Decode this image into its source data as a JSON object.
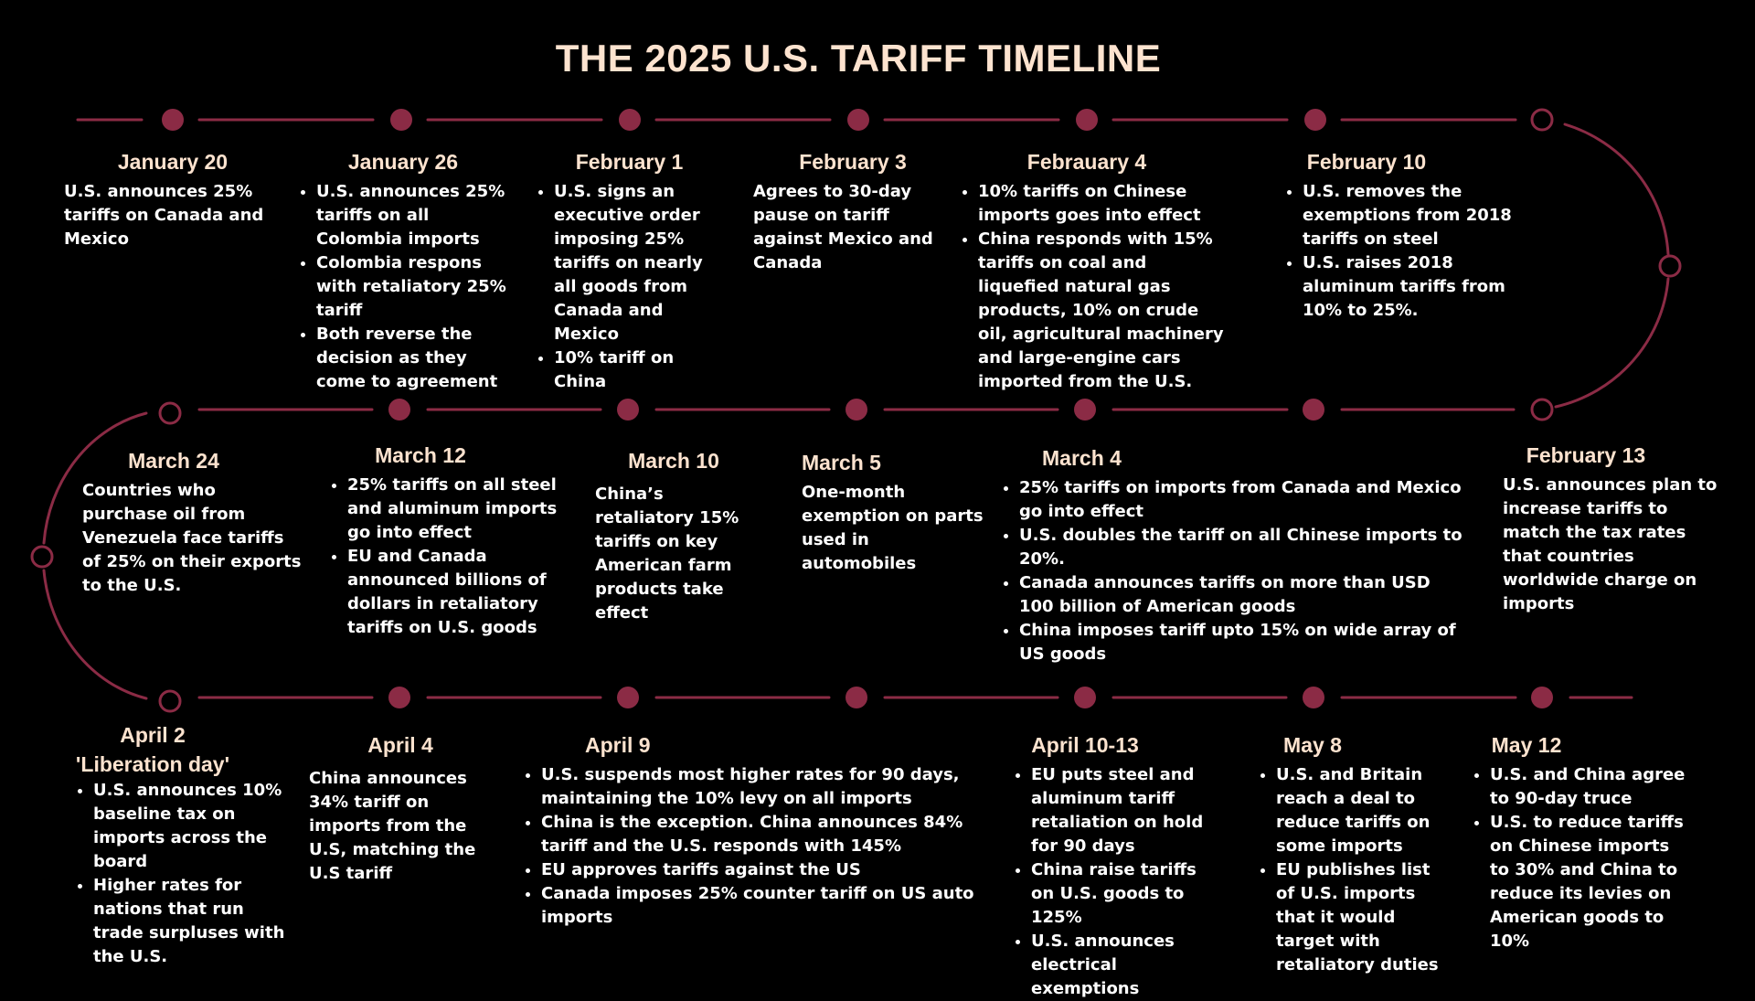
{
  "title": "THE 2025 U.S. TARIFF TIMELINE",
  "colors": {
    "background": "#000000",
    "line": "#8b2b45",
    "dot": "#8b2b45",
    "date": "#fde3cf",
    "text": "#ffffff"
  },
  "events": {
    "jan20": {
      "date": "January 20",
      "text": "U.S. announces 25% tariffs on Canada and Mexico"
    },
    "jan26": {
      "date": "January 26",
      "items": [
        "U.S. announces  25% tariffs on all Colombia imports",
        "Colombia respons with retaliatory 25%  tariff",
        "Both reverse the decision as they come to agreement"
      ]
    },
    "feb1": {
      "date": "February 1",
      "items": [
        "U.S. signs an executive order imposing 25% tariffs on nearly all goods from Canada and Mexico",
        "10% tariff on China"
      ]
    },
    "feb3": {
      "date": "February 3",
      "text": "Agrees to 30-day pause on tariff against Mexico and Canada"
    },
    "feb4": {
      "date": "Febrauary 4",
      "items": [
        "10% tariffs on Chinese imports goes into effect",
        "China responds with 15% tariffs on coal and liquefied natural gas products, 10% on crude oil, agricultural machinery and large-engine cars imported from the U.S."
      ]
    },
    "feb10": {
      "date": "February 10",
      "items": [
        "U.S. removes the exemptions from 2018 tariffs on steel",
        "U.S. raises 2018 aluminum tariffs from 10% to 25%."
      ]
    },
    "feb13": {
      "date": "February 13",
      "text": "U.S. announces plan to increase tariffs to match the tax rates that countries worldwide charge on imports"
    },
    "mar4": {
      "date": "March 4",
      "items": [
        "25% tariffs on imports from Canada and Mexico go into effect",
        "U.S. doubles the tariff on all Chinese imports to 20%.",
        "Canada announces tariffs on more than USD 100 billion of American goods",
        "China imposes tariff upto 15% on wide array of US goods"
      ]
    },
    "mar5": {
      "date": "March 5",
      "text": "One-month exemption on parts used in automobiles"
    },
    "mar10": {
      "date": "March 10",
      "text": "China’s retaliatory 15% tariffs on key American farm products take effect"
    },
    "mar12": {
      "date": "March 12",
      "items": [
        "25% tariffs on all steel and aluminum imports go into effect",
        "EU and Canada announced billions of dollars in retaliatory tariffs on U.S. goods"
      ]
    },
    "mar24": {
      "date": "March 24",
      "text": "Countries who purchase oil from Venezuela face tariffs of 25% on their exports to the U.S."
    },
    "apr2": {
      "date": "April 2",
      "subtitle": "'Liberation day'",
      "items": [
        "U.S. announces  10% baseline tax on imports across the board",
        "Higher rates for nations that run trade surpluses with the U.S."
      ]
    },
    "apr4": {
      "date": "April 4",
      "text": "China announces 34% tariff on imports from the U.S, matching the U.S tariff"
    },
    "apr9": {
      "date": "April 9",
      "items": [
        "U.S. suspends most higher rates for 90 days, maintaining the 10% levy on all imports",
        "China is the exception. China announces 84% tariff and the U.S.  responds with  145%",
        "EU approves tariffs against the US",
        "Canada imposes 25% counter tariff on US auto imports"
      ]
    },
    "apr10": {
      "date": "April 10-13",
      "items": [
        "EU puts steel and aluminum tariff retaliation on hold for 90 days",
        "China raise tariffs on U.S. goods to 125%",
        "U.S. announces electrical exemptions"
      ]
    },
    "may8": {
      "date": "May 8",
      "items": [
        "U.S. and Britain reach a deal to reduce tariffs on some imports",
        "EU publishes list of U.S. imports that it would target with retaliatory duties"
      ]
    },
    "may12": {
      "date": "May 12",
      "items": [
        "U.S. and China agree to  90-day truce",
        "U.S. to reduce tariffs on Chinese imports to 30% and China to reduce its levies on American goods to 10%"
      ]
    }
  }
}
